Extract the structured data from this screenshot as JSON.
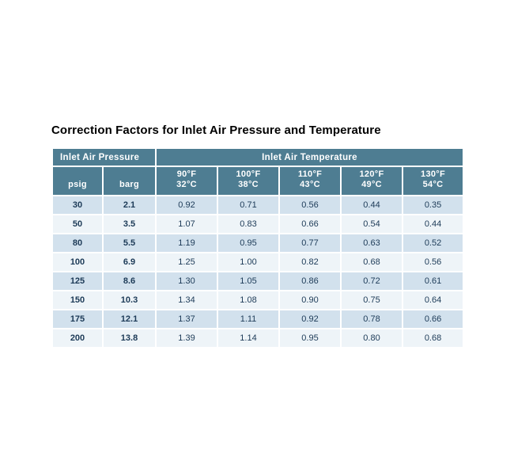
{
  "page": {
    "title": "Correction Factors for Inlet Air Pressure and Temperature"
  },
  "table": {
    "group_headers": [
      {
        "label": "Inlet Air Pressure",
        "colspan": 2
      },
      {
        "label": "Inlet Air Temperature",
        "colspan": 5
      }
    ],
    "columns": [
      {
        "line1": "psig",
        "line2": ""
      },
      {
        "line1": "barg",
        "line2": ""
      },
      {
        "line1": "90°F",
        "line2": "32°C"
      },
      {
        "line1": "100°F",
        "line2": "38°C"
      },
      {
        "line1": "110°F",
        "line2": "43°C"
      },
      {
        "line1": "120°F",
        "line2": "49°C"
      },
      {
        "line1": "130°F",
        "line2": "54°C"
      }
    ],
    "rows": [
      [
        "30",
        "2.1",
        "0.92",
        "0.71",
        "0.56",
        "0.44",
        "0.35"
      ],
      [
        "50",
        "3.5",
        "1.07",
        "0.83",
        "0.66",
        "0.54",
        "0.44"
      ],
      [
        "80",
        "5.5",
        "1.19",
        "0.95",
        "0.77",
        "0.63",
        "0.52"
      ],
      [
        "100",
        "6.9",
        "1.25",
        "1.00",
        "0.82",
        "0.68",
        "0.56"
      ],
      [
        "125",
        "8.6",
        "1.30",
        "1.05",
        "0.86",
        "0.72",
        "0.61"
      ],
      [
        "150",
        "10.3",
        "1.34",
        "1.08",
        "0.90",
        "0.75",
        "0.64"
      ],
      [
        "175",
        "12.1",
        "1.37",
        "1.11",
        "0.92",
        "0.78",
        "0.66"
      ],
      [
        "200",
        "13.8",
        "1.39",
        "1.14",
        "0.95",
        "0.80",
        "0.68"
      ]
    ]
  },
  "colors": {
    "header_bg": "#4e7d92",
    "row_alt": "#d2e1ed",
    "row_base": "#eef4f8",
    "data_text": "#1c3a57",
    "title_text": "#000000"
  },
  "chart_data": {
    "type": "table",
    "title": "Correction Factors for Inlet Air Pressure and Temperature",
    "column_groups": [
      "Inlet Air Pressure",
      "Inlet Air Temperature"
    ],
    "columns": [
      "psig",
      "barg",
      "90°F / 32°C",
      "100°F / 38°C",
      "110°F / 43°C",
      "120°F / 49°C",
      "130°F / 54°C"
    ],
    "rows": [
      [
        30,
        2.1,
        0.92,
        0.71,
        0.56,
        0.44,
        0.35
      ],
      [
        50,
        3.5,
        1.07,
        0.83,
        0.66,
        0.54,
        0.44
      ],
      [
        80,
        5.5,
        1.19,
        0.95,
        0.77,
        0.63,
        0.52
      ],
      [
        100,
        6.9,
        1.25,
        1.0,
        0.82,
        0.68,
        0.56
      ],
      [
        125,
        8.6,
        1.3,
        1.05,
        0.86,
        0.72,
        0.61
      ],
      [
        150,
        10.3,
        1.34,
        1.08,
        0.9,
        0.75,
        0.64
      ],
      [
        175,
        12.1,
        1.37,
        1.11,
        0.92,
        0.78,
        0.66
      ],
      [
        200,
        13.8,
        1.39,
        1.14,
        0.95,
        0.8,
        0.68
      ]
    ]
  }
}
